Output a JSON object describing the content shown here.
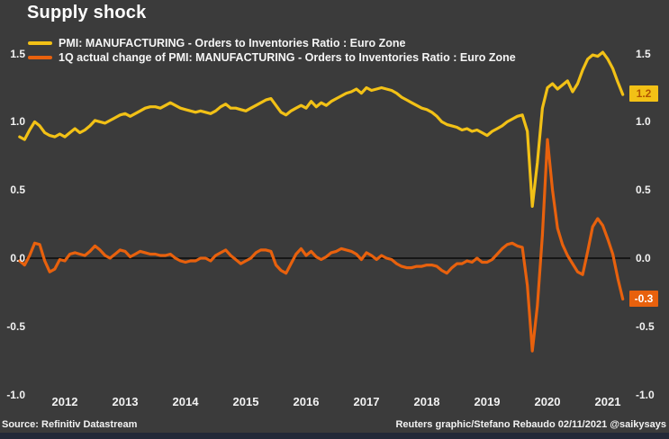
{
  "header": {
    "title": "Supply shock"
  },
  "legend": [
    {
      "label": "PMI: MANUFACTURING - Orders to Inventories Ratio : Euro Zone",
      "color": "#f2c116"
    },
    {
      "label": "1Q actual change of PMI: MANUFACTURING - Orders to Inventories Ratio : Euro Zone",
      "color": "#e8610d"
    }
  ],
  "badges": {
    "last_ratio": "1.2",
    "last_change": "-0.3"
  },
  "footer": {
    "source": "Source: Refinitiv Datastream",
    "credit": "Reuters graphic/Stefano Rebaudo 02/11/2021 @saikysays"
  },
  "colors": {
    "background": "#3b3b3b",
    "ratio_line": "#f2c116",
    "change_line": "#e8610d",
    "ratio_badge_bg": "#f2c116",
    "ratio_badge_text": "#b05400",
    "change_badge_bg": "#e8610d",
    "change_badge_text": "#ffffff",
    "zero_line": "#000000",
    "text": "#f2f2f2",
    "bottom_bar": "#232938"
  },
  "chart_data": {
    "type": "line",
    "title": "Supply shock",
    "x_freq": "monthly",
    "x_start": "2011-10",
    "x_end": "2021-10",
    "x_tick_years": [
      "2012",
      "2013",
      "2014",
      "2015",
      "2016",
      "2017",
      "2018",
      "2019",
      "2020",
      "2021"
    ],
    "y_ticks": [
      "1.5",
      "1.0",
      "0.5",
      "0.0",
      "-0.5",
      "-1.0"
    ],
    "ylim": [
      -1.0,
      1.5
    ],
    "grid": false,
    "zero_line": true,
    "legend_position": "top-left",
    "dual_axis_labels": true,
    "series": [
      {
        "name": "PMI: MANUFACTURING - Orders to Inventories Ratio : Euro Zone",
        "color": "#f2c116",
        "last_value_label": "1.2",
        "values": [
          0.89,
          0.87,
          0.94,
          1.0,
          0.97,
          0.92,
          0.9,
          0.89,
          0.91,
          0.89,
          0.92,
          0.95,
          0.92,
          0.94,
          0.97,
          1.01,
          1.0,
          0.99,
          1.01,
          1.03,
          1.05,
          1.06,
          1.04,
          1.06,
          1.08,
          1.1,
          1.11,
          1.11,
          1.1,
          1.12,
          1.14,
          1.12,
          1.1,
          1.09,
          1.08,
          1.07,
          1.08,
          1.07,
          1.06,
          1.08,
          1.11,
          1.13,
          1.1,
          1.1,
          1.09,
          1.08,
          1.1,
          1.12,
          1.14,
          1.16,
          1.17,
          1.12,
          1.07,
          1.05,
          1.08,
          1.1,
          1.12,
          1.1,
          1.15,
          1.11,
          1.14,
          1.12,
          1.15,
          1.17,
          1.19,
          1.21,
          1.22,
          1.24,
          1.21,
          1.25,
          1.23,
          1.24,
          1.25,
          1.24,
          1.23,
          1.21,
          1.18,
          1.16,
          1.14,
          1.12,
          1.1,
          1.09,
          1.07,
          1.04,
          1.0,
          0.98,
          0.97,
          0.96,
          0.94,
          0.95,
          0.93,
          0.94,
          0.92,
          0.9,
          0.93,
          0.95,
          0.97,
          1.0,
          1.02,
          1.04,
          1.05,
          0.93,
          0.38,
          0.7,
          1.1,
          1.25,
          1.28,
          1.24,
          1.27,
          1.3,
          1.22,
          1.28,
          1.38,
          1.46,
          1.49,
          1.48,
          1.51,
          1.46,
          1.39,
          1.29,
          1.2
        ]
      },
      {
        "name": "1Q actual change of PMI: MANUFACTURING - Orders to Inventories Ratio : Euro Zone",
        "color": "#e8610d",
        "last_value_label": "-0.3",
        "values": [
          -0.02,
          -0.05,
          0.02,
          0.11,
          0.1,
          -0.02,
          -0.1,
          -0.08,
          -0.01,
          -0.02,
          0.03,
          0.04,
          0.03,
          0.02,
          0.05,
          0.09,
          0.06,
          0.02,
          0.0,
          0.03,
          0.06,
          0.05,
          0.01,
          0.03,
          0.05,
          0.04,
          0.03,
          0.03,
          0.02,
          0.02,
          0.03,
          0.0,
          -0.02,
          -0.03,
          -0.02,
          -0.02,
          0.0,
          0.0,
          -0.02,
          0.02,
          0.04,
          0.06,
          0.02,
          -0.01,
          -0.04,
          -0.02,
          0.0,
          0.04,
          0.06,
          0.06,
          0.05,
          -0.05,
          -0.09,
          -0.11,
          -0.04,
          0.03,
          0.07,
          0.02,
          0.05,
          0.01,
          -0.01,
          0.01,
          0.04,
          0.05,
          0.07,
          0.06,
          0.05,
          0.03,
          -0.01,
          0.04,
          0.02,
          -0.01,
          0.02,
          0.0,
          -0.01,
          -0.04,
          -0.06,
          -0.07,
          -0.07,
          -0.06,
          -0.06,
          -0.05,
          -0.05,
          -0.06,
          -0.09,
          -0.11,
          -0.07,
          -0.04,
          -0.04,
          -0.02,
          -0.03,
          0.0,
          -0.03,
          -0.03,
          -0.01,
          0.03,
          0.07,
          0.1,
          0.11,
          0.09,
          0.08,
          -0.2,
          -0.68,
          -0.35,
          0.17,
          0.87,
          0.5,
          0.22,
          0.1,
          0.02,
          -0.04,
          -0.1,
          -0.12,
          0.05,
          0.23,
          0.29,
          0.24,
          0.14,
          0.03,
          -0.15,
          -0.3
        ]
      }
    ]
  }
}
